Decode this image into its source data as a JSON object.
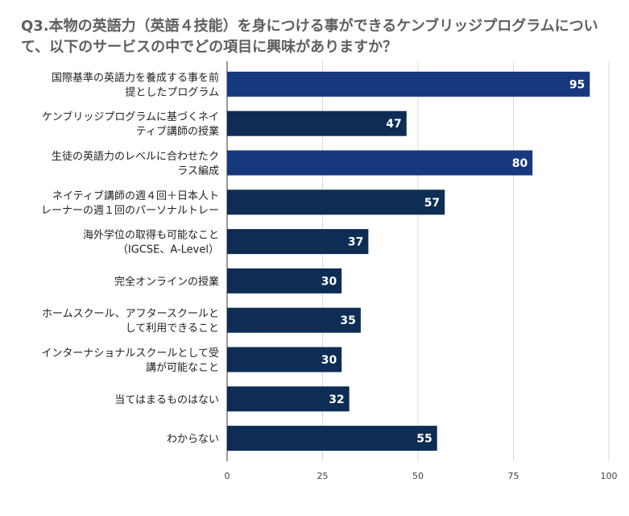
{
  "chart_data": {
    "type": "bar",
    "orientation": "horizontal",
    "title": "Q3.本物の英語力（英語４技能）を身につける事ができるケンブリッジプログラムについて、以下のサービスの中でどの項目に興味がありますか？",
    "categories": [
      [
        "国際基準の英語力を養成する事を前",
        "提としたプログラム"
      ],
      [
        "ケンブリッジプログラムに基づくネイ",
        "ティブ講師の授業"
      ],
      [
        "生徒の英語力のレベルに合わせたク",
        "ラス編成"
      ],
      [
        "ネイティブ講師の週４回＋日本人ト",
        "レーナーの週１回のパーソナルトレー"
      ],
      [
        "海外学位の取得も可能なこと",
        "（IGCSE、A-Level）"
      ],
      [
        "完全オンラインの授業"
      ],
      [
        "ホームスクール、アフタースクールと",
        "して利用できること"
      ],
      [
        "インターナショナルスクールとして受",
        "講が可能なこと"
      ],
      [
        "当てはまるものはない"
      ],
      [
        "わからない"
      ]
    ],
    "values": [
      95,
      47,
      80,
      57,
      37,
      30,
      35,
      30,
      32,
      55
    ],
    "colors": [
      "#17387f",
      "#0d2d55",
      "#17387f",
      "#0d2d55",
      "#0d2d55",
      "#0d2d55",
      "#0d2d55",
      "#0d2d55",
      "#0d2d55",
      "#0d2d55"
    ],
    "xlim": [
      0,
      100
    ],
    "xticks": [
      0,
      25,
      50,
      75,
      100
    ],
    "grid": true,
    "legend": "none"
  }
}
